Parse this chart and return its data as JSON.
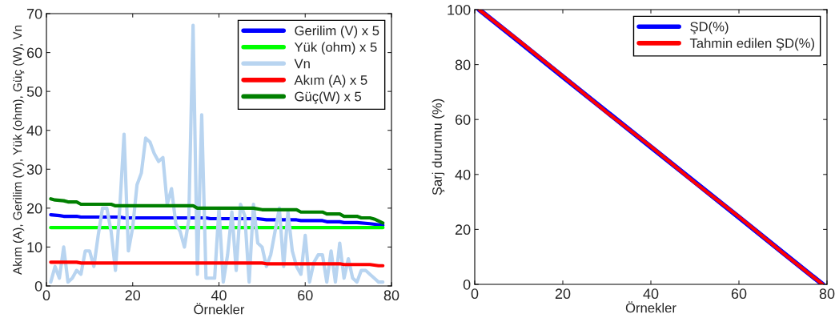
{
  "chart_data": [
    {
      "type": "line",
      "xlabel": "Örnekler",
      "ylabel": "Akım (A), Gerilim (V), Yük (ohm), Güç (W), Vn",
      "xlim": [
        0,
        80
      ],
      "xticks": [
        0,
        20,
        40,
        60,
        80
      ],
      "ylim": [
        0,
        70
      ],
      "yticks": [
        0,
        10,
        20,
        30,
        40,
        50,
        60,
        70
      ],
      "grid": false,
      "legend": "top right",
      "series": [
        {
          "name": "Gerilim (V) x 5",
          "color": "#0000ff",
          "x": [
            1,
            3,
            4,
            7,
            8,
            17,
            18,
            37,
            38,
            49,
            51,
            58,
            59,
            64,
            65,
            68,
            69,
            72,
            75,
            78
          ],
          "values": [
            18.3,
            18.1,
            17.9,
            17.9,
            17.7,
            17.7,
            17.5,
            17.5,
            17.3,
            17.3,
            17.0,
            17.0,
            16.8,
            16.8,
            16.5,
            16.5,
            16.3,
            16.3,
            16.0,
            15.6
          ]
        },
        {
          "name": "Yük (ohm) x 5",
          "color": "#00ff00",
          "x": [
            1,
            78
          ],
          "values": [
            15,
            15
          ]
        },
        {
          "name": "Vn",
          "color": "#b8d4f0",
          "x": [
            1,
            2,
            3,
            4,
            5,
            6,
            7,
            8,
            9,
            10,
            11,
            12,
            13,
            14,
            15,
            16,
            17,
            18,
            19,
            20,
            21,
            22,
            23,
            24,
            25,
            26,
            27,
            28,
            29,
            30,
            31,
            32,
            33,
            34,
            35,
            36,
            37,
            38,
            39,
            40,
            41,
            42,
            43,
            44,
            45,
            46,
            47,
            48,
            49,
            50,
            51,
            52,
            53,
            54,
            55,
            56,
            57,
            58,
            59,
            60,
            61,
            62,
            63,
            64,
            65,
            66,
            67,
            68,
            69,
            70,
            71,
            72,
            73,
            74,
            75,
            76,
            77,
            78
          ],
          "values": [
            1,
            5,
            2,
            10,
            1,
            2,
            4,
            3,
            9,
            9,
            5,
            13,
            20,
            20,
            14,
            4,
            20,
            39,
            9,
            15,
            26,
            29,
            38,
            37,
            34,
            32,
            33,
            21,
            25,
            16,
            14,
            10,
            17,
            67,
            3,
            44,
            2,
            2,
            2,
            20,
            1,
            8,
            19,
            4,
            21,
            18,
            1,
            21,
            11,
            10,
            5,
            8,
            14,
            20,
            5,
            19,
            9,
            5,
            3,
            13,
            1,
            6,
            8,
            8,
            1,
            9,
            1,
            11,
            2,
            7,
            2,
            1,
            4,
            4,
            3,
            2,
            1,
            1
          ]
        },
        {
          "name": "Akım (A) x 5",
          "color": "#ff0000",
          "x": [
            1,
            7,
            8,
            50,
            51,
            68,
            69,
            75,
            77,
            78
          ],
          "values": [
            6.1,
            6.1,
            5.9,
            5.9,
            5.7,
            5.7,
            5.5,
            5.5,
            5.2,
            5.2
          ]
        },
        {
          "name": "Güç(W) x 5",
          "color": "#007f00",
          "x": [
            1,
            2,
            4,
            5,
            7,
            8,
            15,
            16,
            34,
            35,
            48,
            50,
            58,
            59,
            64,
            65,
            68,
            69,
            72,
            73,
            75,
            76,
            78
          ],
          "values": [
            22.4,
            22.1,
            21.9,
            21.6,
            21.6,
            21.0,
            21.0,
            20.6,
            20.6,
            20.0,
            20.0,
            19.6,
            19.6,
            19.0,
            19.0,
            18.5,
            18.5,
            17.9,
            17.9,
            17.5,
            17.5,
            17.2,
            16.2
          ]
        }
      ]
    },
    {
      "type": "line",
      "xlabel": "Örnekler",
      "ylabel": "Şarj durumu (%)",
      "xlim": [
        0,
        80
      ],
      "xticks": [
        0,
        20,
        40,
        60,
        80
      ],
      "ylim": [
        0,
        100
      ],
      "yticks": [
        0,
        20,
        40,
        60,
        80,
        100
      ],
      "grid": false,
      "legend": "top right",
      "series": [
        {
          "name": "ŞD(%)",
          "color": "#0000ff",
          "x": [
            1,
            10,
            20,
            30,
            40,
            50,
            60,
            70,
            79
          ],
          "values": [
            100,
            88.5,
            75.6,
            62.8,
            50,
            37.2,
            24.4,
            11.5,
            0
          ]
        },
        {
          "name": "Tahmin edilen ŞD(%)",
          "color": "#ff0000",
          "x": [
            1,
            10,
            20,
            30,
            40,
            50,
            60,
            70,
            79
          ],
          "values": [
            100,
            88.7,
            75.8,
            62.6,
            50.2,
            37.0,
            24.6,
            11.4,
            0
          ]
        }
      ]
    }
  ]
}
